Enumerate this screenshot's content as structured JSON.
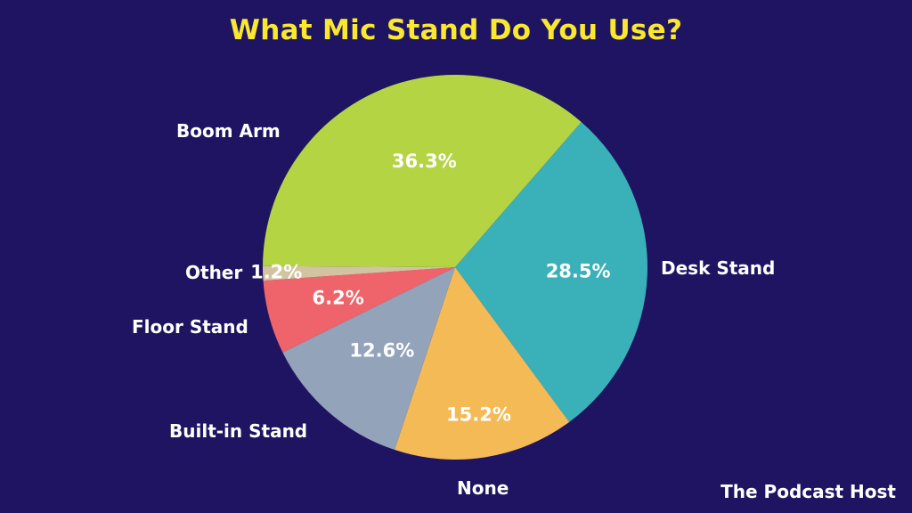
{
  "title": "What Mic Stand Do You Use?",
  "brand": "The Podcast Host",
  "colors": {
    "background": "#1E1462",
    "title": "#F9E82E"
  },
  "chart_data": {
    "type": "pie",
    "title": "What Mic Stand Do You Use?",
    "start_angle_deg": 41,
    "direction": "clockwise",
    "slices": [
      {
        "label": "Desk Stand",
        "value": 28.5,
        "display": "28.5%",
        "color": "#3AB0B8"
      },
      {
        "label": "None",
        "value": 15.2,
        "display": "15.2%",
        "color": "#F4BA56"
      },
      {
        "label": "Built-in Stand",
        "value": 12.6,
        "display": "12.6%",
        "color": "#93A3BA"
      },
      {
        "label": "Floor Stand",
        "value": 6.2,
        "display": "6.2%",
        "color": "#EF646B"
      },
      {
        "label": "Other",
        "value": 1.2,
        "display": "1.2%",
        "color": "#D3C4A1"
      },
      {
        "label": "Boom Arm",
        "value": 36.3,
        "display": "36.3%",
        "color": "#B5D443"
      }
    ],
    "legend": "none (labels outside slices)"
  }
}
